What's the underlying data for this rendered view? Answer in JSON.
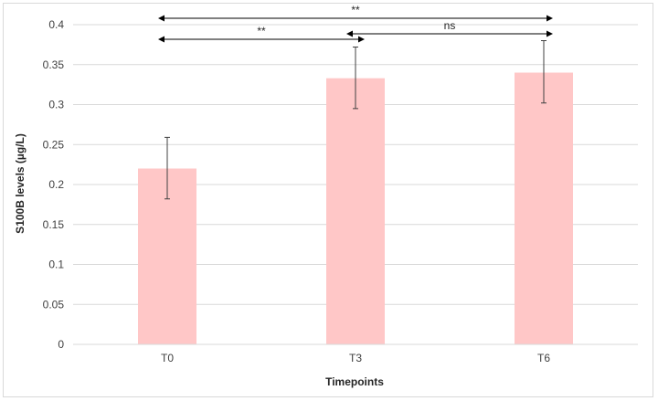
{
  "chart_data": {
    "type": "bar",
    "title": "",
    "xlabel": "Timepoints",
    "ylabel": "S100B levels (µg/L)",
    "categories": [
      "T0",
      "T3",
      "T6"
    ],
    "values": [
      0.22,
      0.333,
      0.34
    ],
    "error_bars": [
      {
        "low": 0.182,
        "high": 0.259
      },
      {
        "low": 0.295,
        "high": 0.372
      },
      {
        "low": 0.302,
        "high": 0.38
      }
    ],
    "ylim": [
      0,
      0.4
    ],
    "yticks": [
      0,
      0.05,
      0.1,
      0.15,
      0.2,
      0.25,
      0.3,
      0.35,
      0.4
    ],
    "ytick_labels": [
      "0",
      "0.05",
      "0.1",
      "0.15",
      "0.2",
      "0.25",
      "0.3",
      "0.35",
      "0.4"
    ],
    "grid": true,
    "legend": "none",
    "bar_color": "#ffc7c7",
    "significance": [
      {
        "from": "T0",
        "to": "T6",
        "label": "**"
      },
      {
        "from": "T0",
        "to": "T3",
        "label": "**"
      },
      {
        "from": "T3",
        "to": "T6",
        "label": "ns"
      }
    ]
  }
}
